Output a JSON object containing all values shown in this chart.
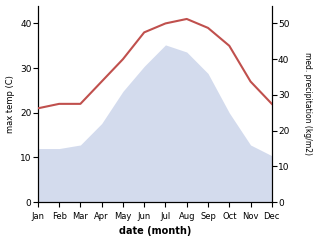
{
  "months": [
    "Jan",
    "Feb",
    "Mar",
    "Apr",
    "May",
    "Jun",
    "Jul",
    "Aug",
    "Sep",
    "Oct",
    "Nov",
    "Dec"
  ],
  "x": [
    0,
    1,
    2,
    3,
    4,
    5,
    6,
    7,
    8,
    9,
    10,
    11
  ],
  "temp": [
    21,
    22,
    22,
    27,
    32,
    38,
    40,
    41,
    39,
    35,
    27,
    22
  ],
  "precip": [
    15,
    15,
    16,
    22,
    31,
    38,
    44,
    42,
    36,
    25,
    16,
    13
  ],
  "temp_color": "#c0504d",
  "precip_color": "#c5cfe8",
  "ylabel_left": "max temp (C)",
  "ylabel_right": "med. precipitation (kg/m2)",
  "xlabel": "date (month)",
  "ylim_left": [
    0,
    44
  ],
  "ylim_right": [
    0,
    55
  ],
  "yticks_left": [
    0,
    10,
    20,
    30,
    40
  ],
  "yticks_right": [
    0,
    10,
    20,
    30,
    40,
    50
  ],
  "bg_color": "#ffffff"
}
